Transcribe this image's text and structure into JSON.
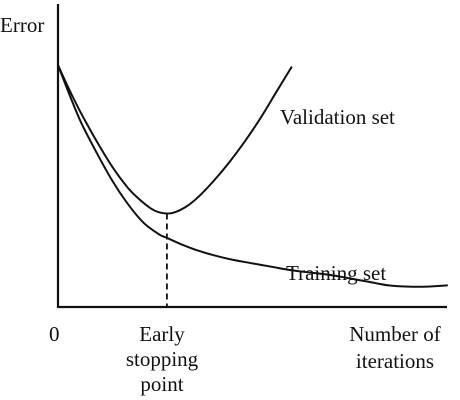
{
  "chart_data": {
    "type": "line",
    "title": "",
    "ylabel": "Error",
    "x_origin_label": "0",
    "xlabel": [
      "Number of",
      "iterations"
    ],
    "xlim": [
      0,
      100
    ],
    "ylim": [
      0,
      100
    ],
    "grid": false,
    "legend": "none",
    "annotations": {
      "early_stopping": {
        "x": 28,
        "lines": [
          "Early",
          "stopping",
          "point"
        ]
      }
    },
    "series": [
      {
        "name": "Validation set",
        "x": [
          0,
          3,
          6,
          10,
          14,
          18,
          21,
          24,
          26,
          28,
          30,
          33,
          36,
          40,
          44,
          48,
          52,
          56,
          60
        ],
        "y": [
          100,
          89,
          79,
          67,
          56,
          47,
          42,
          38,
          36.5,
          36,
          36.5,
          39,
          43,
          50,
          58,
          67,
          77,
          88,
          99
        ]
      },
      {
        "name": "Training set",
        "x": [
          0,
          3,
          6,
          10,
          14,
          18,
          22,
          26,
          28,
          32,
          36,
          40,
          45,
          50,
          55,
          60,
          65,
          70,
          75,
          80,
          85,
          90,
          95,
          100
        ],
        "y": [
          100,
          87,
          75,
          62,
          50,
          40,
          32,
          27,
          25.5,
          22.5,
          20,
          18,
          16,
          14.5,
          13,
          11.5,
          10.5,
          9.5,
          8,
          6.5,
          5,
          4.5,
          4.5,
          5
        ]
      }
    ]
  }
}
